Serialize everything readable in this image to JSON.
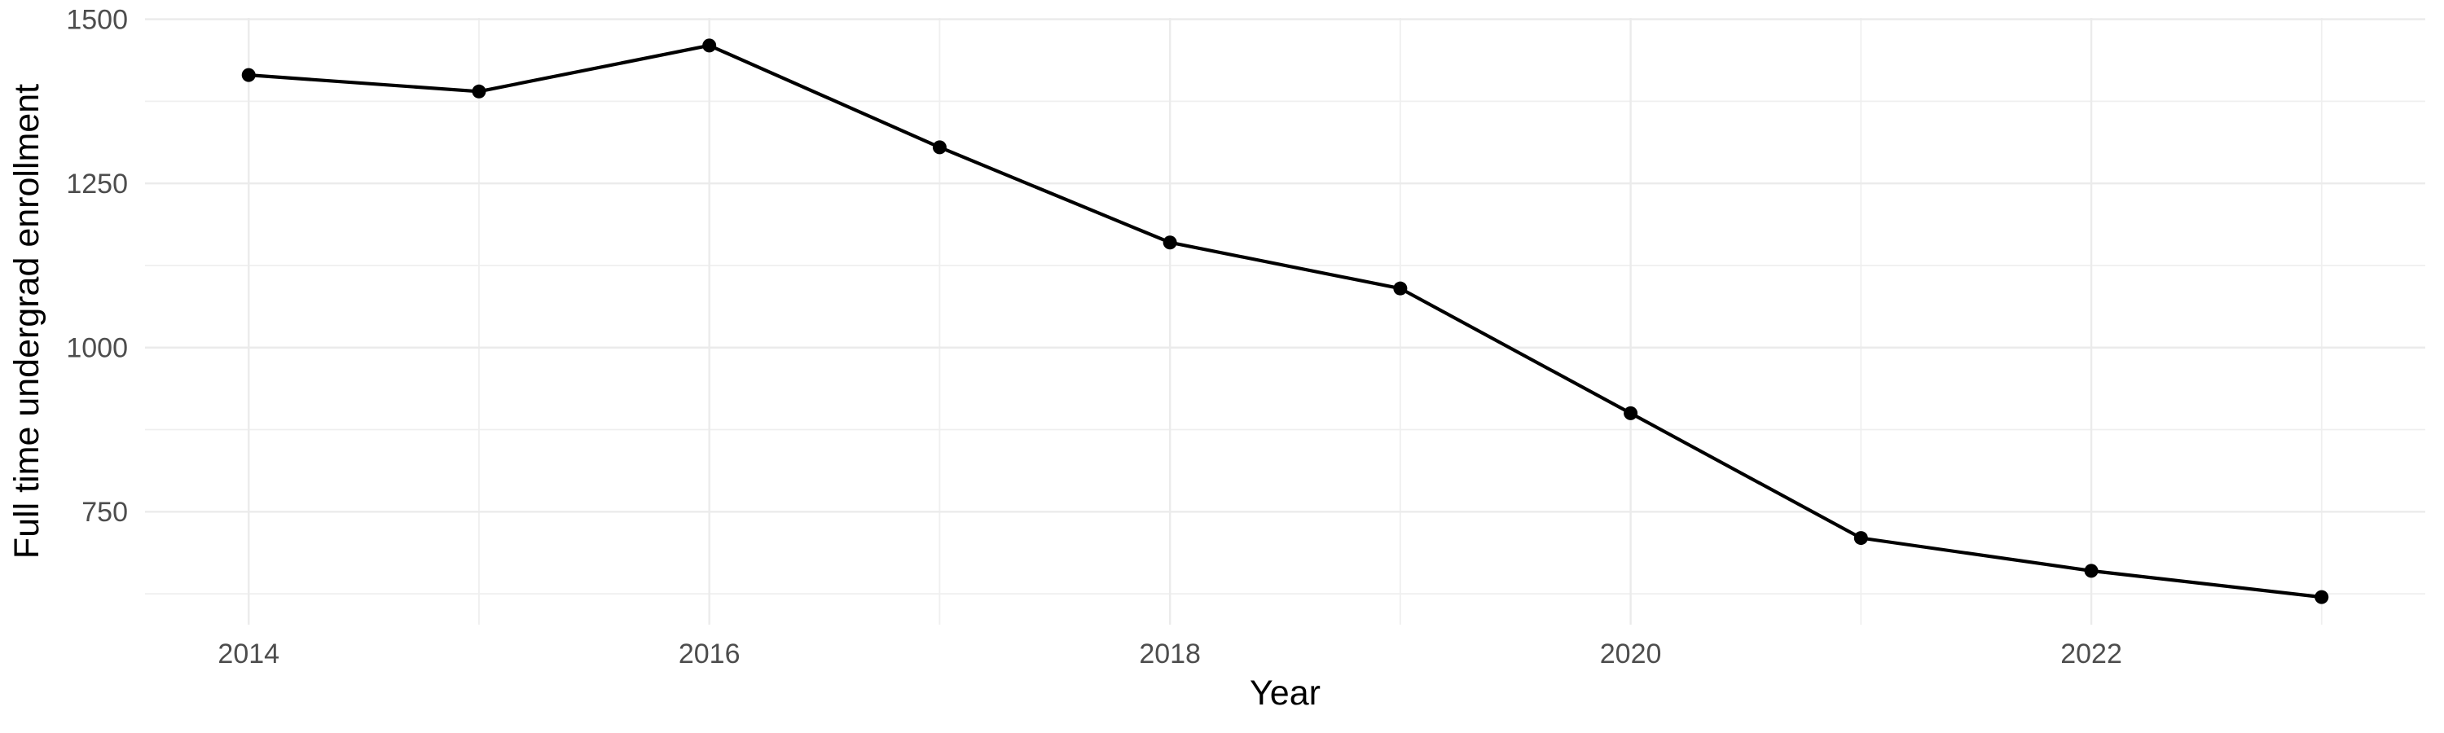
{
  "chart_data": {
    "type": "line",
    "title": "",
    "xlabel": "Year",
    "ylabel": "Full time undergrad enrollment",
    "x": [
      2014,
      2015,
      2016,
      2017,
      2018,
      2019,
      2020,
      2021,
      2022,
      2023
    ],
    "series": [
      {
        "name": "Full time undergrad enrollment",
        "values": [
          1415,
          1390,
          1460,
          1305,
          1160,
          1090,
          900,
          710,
          660,
          620
        ]
      }
    ],
    "xlim": [
      2013.55,
      2023.45
    ],
    "ylim": [
      578,
      1502
    ],
    "x_major_ticks": [
      2014,
      2016,
      2018,
      2020,
      2022
    ],
    "x_minor_ticks": [
      2015,
      2017,
      2019,
      2021,
      2023
    ],
    "y_major_ticks": [
      750,
      1000,
      1250,
      1500
    ],
    "y_minor_ticks": [
      625,
      875,
      1125,
      1375
    ],
    "grid": true,
    "legend_position": "none",
    "colors": {
      "background": "#FFFFFF",
      "grid_major": "#EBEBEB",
      "grid_minor": "#EFEFEF",
      "line": "#000000",
      "point": "#000000",
      "tick_text": "#4D4D4D",
      "axis_title_text": "#000000"
    }
  }
}
